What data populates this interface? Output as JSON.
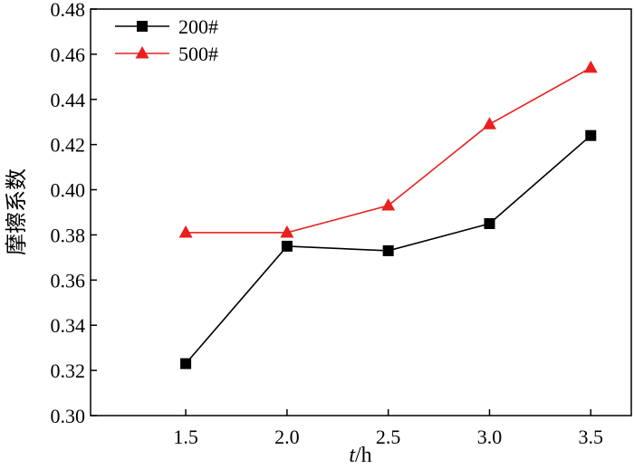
{
  "chart_data": {
    "type": "line",
    "x": [
      1.5,
      2.0,
      2.5,
      3.0,
      3.5
    ],
    "x_ticks": [
      "1.5",
      "2.0",
      "2.5",
      "3.0",
      "3.5"
    ],
    "y_ticks": [
      "0.30",
      "0.32",
      "0.34",
      "0.36",
      "0.38",
      "0.40",
      "0.42",
      "0.44",
      "0.46",
      "0.48"
    ],
    "xlim": [
      1.03,
      3.7
    ],
    "ylim": [
      0.3,
      0.48
    ],
    "xlabel_italic": "t",
    "xlabel_unit": "/h",
    "ylabel": "摩擦系数",
    "grid": false,
    "legend_position": "top-left",
    "series": [
      {
        "name": "200#",
        "values": [
          0.323,
          0.375,
          0.373,
          0.385,
          0.424
        ],
        "color": "#000000",
        "marker": "square"
      },
      {
        "name": "500#",
        "values": [
          0.381,
          0.381,
          0.393,
          0.429,
          0.454
        ],
        "color": "#e8201e",
        "marker": "triangle"
      }
    ]
  }
}
